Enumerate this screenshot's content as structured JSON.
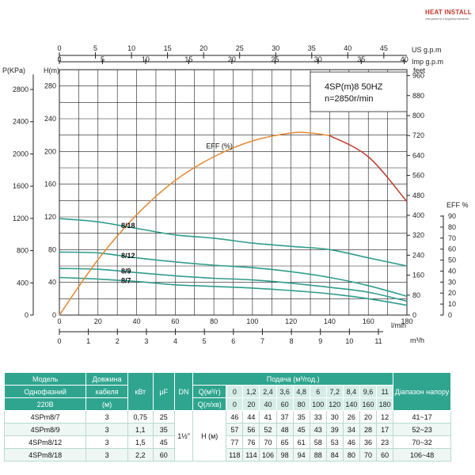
{
  "logo": {
    "text": "HEAT INSTALL",
    "tagline": "спеціалісти з водопостачання"
  },
  "chart_data": {
    "type": "line",
    "info_box": [
      "4SP(m)8  50HZ",
      "n=2850r/min"
    ],
    "axes": {
      "top_us": {
        "label": "US g.p.m",
        "min": 0,
        "max": 45,
        "ticks": [
          0,
          5,
          10,
          15,
          20,
          25,
          30,
          35,
          40,
          45
        ]
      },
      "top_imp": {
        "label": "Imp g.p.m",
        "min": 0,
        "max": 40,
        "ticks": [
          0,
          5,
          10,
          15,
          20,
          25,
          30,
          35,
          40
        ]
      },
      "bottom_lmin": {
        "label": "l/min",
        "min": 0,
        "max": 180,
        "ticks": [
          0,
          20,
          40,
          60,
          80,
          100,
          120,
          140,
          160,
          180
        ]
      },
      "bottom_m3h": {
        "label": "m³/h",
        "min": 0,
        "max": 11,
        "ticks": [
          0,
          1,
          2,
          3,
          4,
          5,
          6,
          7,
          8,
          9,
          10,
          11
        ]
      },
      "left_h": {
        "label": "H(m)",
        "min": 0,
        "max": 280,
        "ticks": [
          0,
          40,
          80,
          120,
          160,
          200,
          240,
          280
        ]
      },
      "left_p": {
        "label": "P(KPa)",
        "min": 0,
        "max": 2800,
        "ticks": [
          0,
          400,
          800,
          1200,
          1600,
          2000,
          2400,
          2800
        ]
      },
      "right_feet": {
        "label": "feet",
        "min": 0,
        "max": 960,
        "ticks": [
          0,
          80,
          160,
          240,
          320,
          400,
          480,
          560,
          640,
          720,
          800,
          880,
          960
        ]
      },
      "right_eff": {
        "label": "EFF %",
        "min": 0,
        "max": 90,
        "ticks": [
          0,
          10,
          20,
          30,
          40,
          50,
          60,
          70,
          80,
          90
        ]
      }
    },
    "series": [
      {
        "name": "8/18",
        "x": [
          0,
          20,
          40,
          60,
          80,
          100,
          120,
          140,
          160,
          180
        ],
        "y": [
          118,
          114,
          106,
          98,
          94,
          88,
          84,
          80,
          70,
          60
        ]
      },
      {
        "name": "8/12",
        "x": [
          0,
          20,
          40,
          60,
          80,
          100,
          120,
          140,
          160,
          180
        ],
        "y": [
          77,
          76,
          70,
          65,
          61,
          58,
          53,
          46,
          36,
          23
        ]
      },
      {
        "name": "8/9",
        "x": [
          0,
          20,
          40,
          60,
          80,
          100,
          120,
          140,
          160,
          180
        ],
        "y": [
          57,
          56,
          52,
          48,
          45,
          43,
          39,
          34,
          28,
          17
        ]
      },
      {
        "name": "8/7",
        "x": [
          0,
          20,
          40,
          60,
          80,
          100,
          120,
          140,
          160,
          180
        ],
        "y": [
          46,
          44,
          41,
          37,
          35,
          33,
          30,
          26,
          20,
          12
        ]
      }
    ],
    "efficiency": {
      "name": "EFF (%)",
      "x": [
        0,
        20,
        40,
        60,
        80,
        100,
        120,
        130,
        140,
        160,
        180
      ],
      "y": [
        0,
        21,
        38,
        51,
        60,
        66,
        69,
        69,
        68,
        60,
        43
      ]
    },
    "colors": {
      "head": "#2e9c8c",
      "eff": "#e38a33",
      "eff_end": "#c0392b",
      "grid": "#1a1a1a",
      "axis": "#222222"
    }
  },
  "table": {
    "h_model": "Модель",
    "h_single": "Однофазний",
    "h_voltage": "220В",
    "h_cable1": "Довжина",
    "h_cable2": "кабеля",
    "h_cable_unit": "(м)",
    "h_kw": "кВт",
    "h_uf": "μF",
    "h_dn": "DN",
    "h_flow": "Подача (м³/год.)",
    "h_q1": "Q(м³/г)",
    "h_q2": "Q(л/хв)",
    "h_range": "Діапазон напору",
    "q_m3h": [
      "0",
      "1,2",
      "2,4",
      "3,6",
      "4,8",
      "6",
      "7,2",
      "8,4",
      "9,6",
      "11"
    ],
    "q_lmin": [
      "0",
      "20",
      "40",
      "60",
      "80",
      "100",
      "120",
      "140",
      "160",
      "180"
    ],
    "dn_value": "1½\"",
    "h_label": "Н (м)",
    "rows": [
      {
        "model": "4SPm8/7",
        "cable": "3",
        "kw": "0,75",
        "uf": "25",
        "h": [
          "46",
          "44",
          "41",
          "37",
          "35",
          "33",
          "30",
          "26",
          "20",
          "12"
        ],
        "range": "41~17"
      },
      {
        "model": "4SPm8/9",
        "cable": "3",
        "kw": "1,1",
        "uf": "35",
        "h": [
          "57",
          "56",
          "52",
          "48",
          "45",
          "43",
          "39",
          "34",
          "28",
          "17"
        ],
        "range": "52~23"
      },
      {
        "model": "4SPm8/12",
        "cable": "3",
        "kw": "1,5",
        "uf": "45",
        "h": [
          "77",
          "76",
          "70",
          "65",
          "61",
          "58",
          "53",
          "46",
          "36",
          "23"
        ],
        "range": "70~32"
      },
      {
        "model": "4SPm8/18",
        "cable": "3",
        "kw": "2,2",
        "uf": "60",
        "h": [
          "118",
          "114",
          "106",
          "98",
          "94",
          "88",
          "84",
          "80",
          "70",
          "60"
        ],
        "range": "106~48"
      }
    ]
  }
}
